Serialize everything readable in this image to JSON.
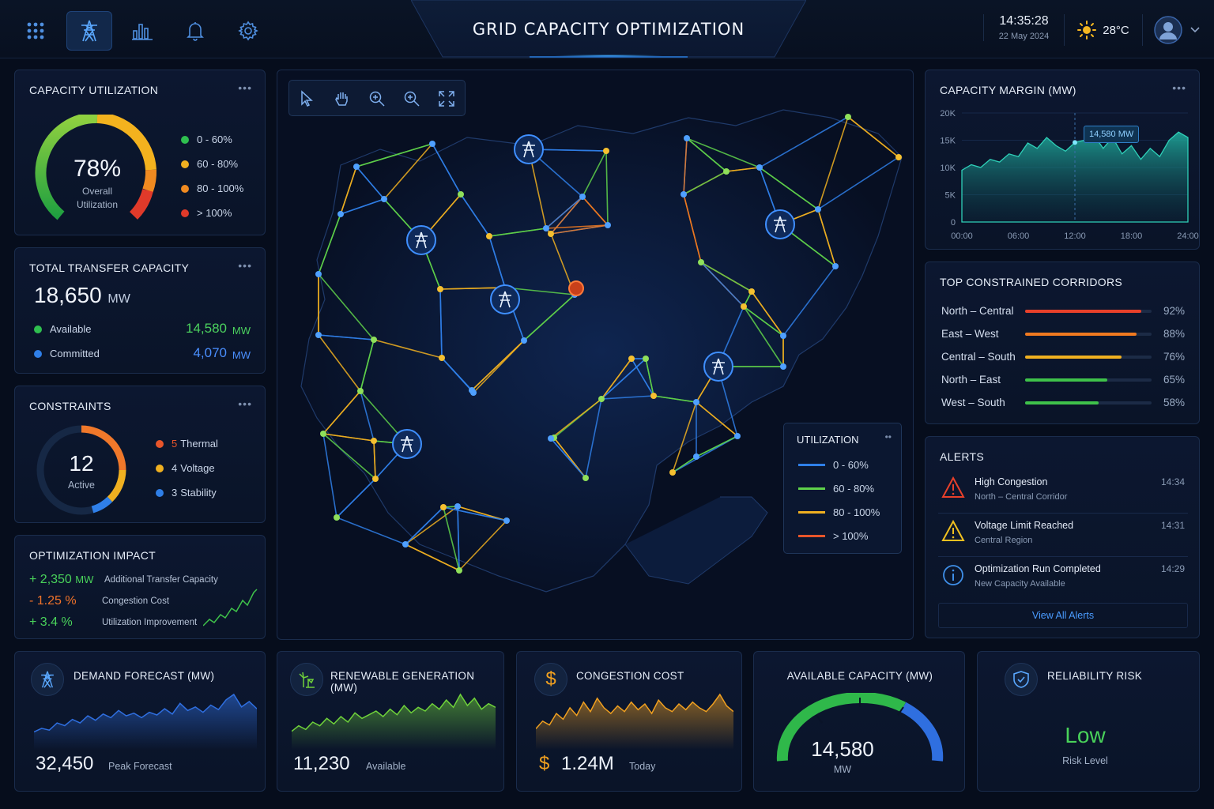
{
  "header": {
    "title": "GRID CAPACITY OPTIMIZATION",
    "time": "14:35:28",
    "date": "22 May 2024",
    "temperature": "28°C",
    "nav_icons": [
      "apps-grid-icon",
      "transmission-tower-icon",
      "bar-chart-icon",
      "bell-icon",
      "gear-icon"
    ]
  },
  "capacity_utilization": {
    "title": "CAPACITY UTILIZATION",
    "value": "78%",
    "label_line1": "Overall",
    "label_line2": "Utilization",
    "legend": [
      {
        "label": "0 - 60%",
        "color": "#2fbf4f"
      },
      {
        "label": "60 - 80%",
        "color": "#f0b020"
      },
      {
        "label": "80 - 100%",
        "color": "#f08a20"
      },
      {
        "label": "> 100%",
        "color": "#e03a2a"
      }
    ]
  },
  "transfer_capacity": {
    "title": "TOTAL TRANSFER CAPACITY",
    "total": "18,650",
    "unit": "MW",
    "available_label": "Available",
    "available_value": "14,580",
    "committed_label": "Committed",
    "committed_value": "4,070"
  },
  "constraints": {
    "title": "CONSTRAINTS",
    "count": "12",
    "count_label": "Active",
    "items": [
      {
        "count": "5",
        "label": "Thermal",
        "color": "#e8552a"
      },
      {
        "count": "4",
        "label": "Voltage",
        "color": "#f0b020"
      },
      {
        "count": "3",
        "label": "Stability",
        "color": "#2f7fe8"
      }
    ]
  },
  "optimization_impact": {
    "title": "OPTIMIZATION IMPACT",
    "rows": [
      {
        "value": "+ 2,350",
        "unit": "MW",
        "label": "Additional Transfer Capacity",
        "color": "#49d25a"
      },
      {
        "value": "- 1.25 %",
        "unit": "",
        "label": "Congestion Cost",
        "color": "#f0732a"
      },
      {
        "value": "+ 3.4 %",
        "unit": "",
        "label": "Utilization Improvement",
        "color": "#49d25a"
      }
    ]
  },
  "map": {
    "legend_title": "UTILIZATION",
    "legend": [
      {
        "label": "0 - 60%",
        "color": "#2f7fe8"
      },
      {
        "label": "60 - 80%",
        "color": "#5fd24a"
      },
      {
        "label": "80 - 100%",
        "color": "#f0b020"
      },
      {
        "label": "> 100%",
        "color": "#e8552a"
      }
    ],
    "tools": [
      "select-cursor-icon",
      "pan-hand-icon",
      "zoom-in-icon",
      "zoom-out-icon",
      "fullscreen-icon"
    ]
  },
  "capacity_margin": {
    "title": "CAPACITY MARGIN (MW)",
    "tooltip": "14,580 MW",
    "chart_data": {
      "type": "area",
      "title": "CAPACITY MARGIN (MW)",
      "x_ticks": [
        "00:00",
        "06:00",
        "12:00",
        "18:00",
        "24:00"
      ],
      "y_ticks": [
        "0",
        "5K",
        "10K",
        "15K",
        "20K"
      ],
      "ylim": [
        0,
        20000
      ],
      "x_hours": [
        0,
        1,
        2,
        3,
        4,
        5,
        6,
        7,
        8,
        9,
        10,
        11,
        12,
        13,
        14,
        15,
        16,
        17,
        18,
        19,
        20,
        21,
        22,
        23,
        24
      ],
      "values": [
        9500,
        10500,
        10000,
        11500,
        11000,
        12500,
        12000,
        14500,
        13500,
        15500,
        14000,
        13000,
        14580,
        15000,
        16000,
        13500,
        15500,
        12500,
        14000,
        11500,
        13500,
        12000,
        15000,
        16500,
        15500
      ],
      "highlight_x": 12
    }
  },
  "corridors": {
    "title": "TOP CONSTRAINED CORRIDORS",
    "items": [
      {
        "name": "North – Central",
        "pct": "92%",
        "value": 92,
        "color": "#e8402a"
      },
      {
        "name": "East – West",
        "pct": "88%",
        "value": 88,
        "color": "#f07a20"
      },
      {
        "name": "Central – South",
        "pct": "76%",
        "value": 76,
        "color": "#f0b020"
      },
      {
        "name": "North – East",
        "pct": "65%",
        "value": 65,
        "color": "#3fc24a"
      },
      {
        "name": "West – South",
        "pct": "58%",
        "value": 58,
        "color": "#3fc24a"
      }
    ]
  },
  "alerts": {
    "title": "ALERTS",
    "items": [
      {
        "title": "High Congestion",
        "sub": "North – Central Corridor",
        "time": "14:34",
        "icon": "warning-red-icon"
      },
      {
        "title": "Voltage Limit Reached",
        "sub": "Central Region",
        "time": "14:31",
        "icon": "warning-yellow-icon"
      },
      {
        "title": "Optimization Run Completed",
        "sub": "New Capacity Available",
        "time": "14:29",
        "icon": "info-icon"
      }
    ],
    "view_all": "View All Alerts"
  },
  "kpis": {
    "demand": {
      "title": "DEMAND FORECAST (MW)",
      "value": "32,450",
      "sub": "Peak Forecast",
      "color": "#2f6fe0",
      "chart_data": {
        "type": "area",
        "values": [
          20,
          24,
          22,
          30,
          27,
          34,
          30,
          38,
          33,
          40,
          36,
          44,
          38,
          41,
          36,
          42,
          39,
          46,
          40,
          52,
          44,
          48,
          42,
          50,
          45,
          56,
          62,
          48,
          54,
          46
        ]
      }
    },
    "renewable": {
      "title": "RENEWABLE GENERATION (MW)",
      "value": "11,230",
      "sub": "Available",
      "color": "#6fd23a",
      "chart_data": {
        "type": "area",
        "values": [
          20,
          26,
          22,
          30,
          26,
          34,
          28,
          36,
          30,
          40,
          34,
          38,
          42,
          36,
          44,
          38,
          48,
          40,
          46,
          42,
          50,
          44,
          54,
          46,
          60,
          48,
          56,
          44,
          50,
          46
        ]
      }
    },
    "congestion": {
      "title": "CONGESTION COST",
      "value_prefix": "$",
      "value": "1.24M",
      "sub": "Today",
      "color": "#f0a020",
      "chart_data": {
        "type": "area",
        "values": [
          22,
          30,
          26,
          38,
          32,
          44,
          36,
          50,
          40,
          54,
          44,
          38,
          46,
          40,
          50,
          42,
          48,
          38,
          52,
          44,
          40,
          48,
          42,
          50,
          44,
          40,
          48,
          58,
          46,
          40
        ]
      }
    },
    "available": {
      "title": "AVAILABLE CAPACITY (MW)",
      "value": "14,580",
      "sub": "MW"
    },
    "reliability": {
      "title": "RELIABILITY RISK",
      "value": "Low",
      "sub": "Risk Level"
    }
  }
}
